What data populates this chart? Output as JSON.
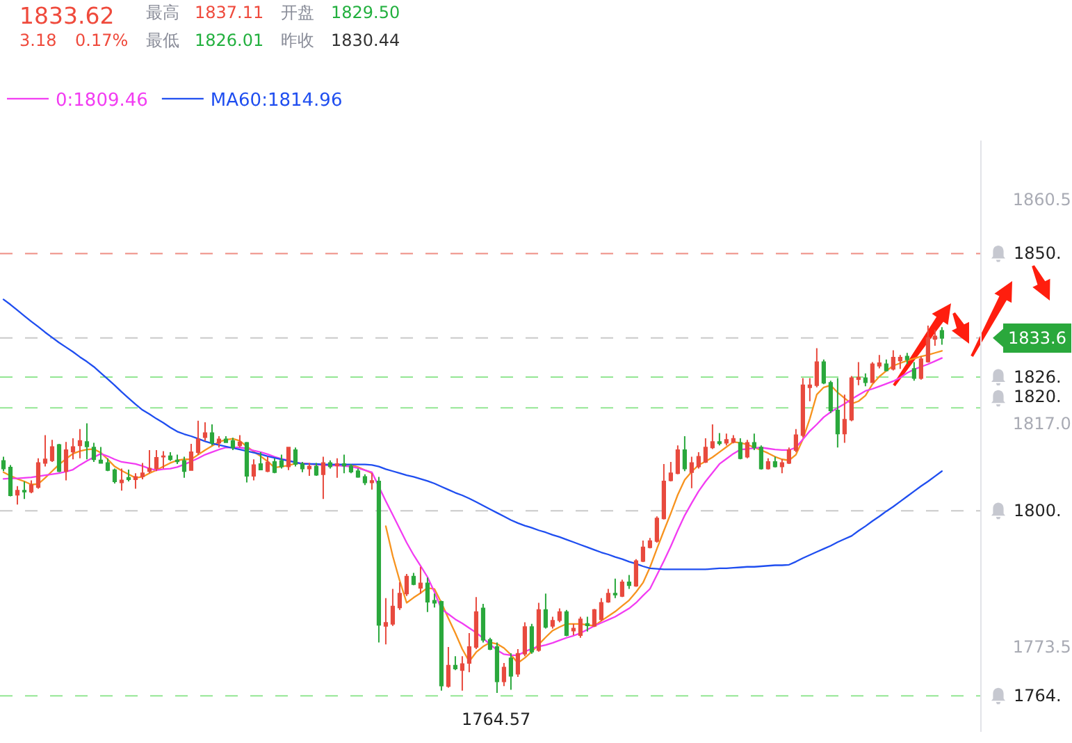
{
  "chart_data": {
    "type": "candlestick",
    "categories": [
      null,
      null,
      null,
      null,
      null,
      null,
      null,
      null,
      null,
      null,
      null,
      null,
      null,
      null,
      null,
      null,
      null,
      null,
      null,
      null,
      null,
      null,
      null,
      null,
      null,
      null,
      null,
      null,
      null,
      null,
      null,
      null,
      null,
      null,
      null,
      null,
      null,
      null,
      null,
      null,
      null,
      null,
      null,
      null,
      null,
      null,
      null,
      null,
      null,
      null,
      null,
      null,
      null,
      null,
      null,
      null,
      null,
      null,
      null,
      null,
      null,
      null,
      null,
      null,
      null,
      null,
      null,
      null,
      null,
      null,
      null,
      null,
      null,
      null,
      null,
      null,
      null,
      null,
      null,
      null,
      null,
      null,
      null,
      null,
      null,
      null,
      null,
      null,
      null,
      null,
      null,
      null,
      null,
      null,
      null,
      null,
      null,
      null,
      null,
      null,
      null,
      null,
      null,
      null,
      null,
      null,
      null,
      null,
      null,
      null,
      null,
      null,
      null,
      null,
      null,
      null,
      null,
      null,
      null,
      null,
      null,
      null,
      null,
      null,
      null,
      null,
      null,
      null,
      null,
      null,
      null,
      null,
      null,
      null,
      null,
      null
    ],
    "ohlc": [
      [
        1809.7,
        1810.5,
        1807.7,
        1808.2
      ],
      [
        1808.4,
        1808.9,
        1802.8,
        1803.0
      ],
      [
        1803.1,
        1804.8,
        1801.2,
        1803.9
      ],
      [
        1803.9,
        1805.7,
        1802.3,
        1803.7
      ],
      [
        1803.7,
        1805.9,
        1803.4,
        1805.0
      ],
      [
        1804.6,
        1810.2,
        1804.3,
        1809.3
      ],
      [
        1809.3,
        1814.7,
        1808.6,
        1810.0
      ],
      [
        1809.8,
        1813.8,
        1809.5,
        1812.4
      ],
      [
        1812.8,
        1813.0,
        1807.5,
        1807.7
      ],
      [
        1807.7,
        1813.4,
        1805.9,
        1811.8
      ],
      [
        1811.5,
        1814.1,
        1810.0,
        1812.4
      ],
      [
        1812.7,
        1815.9,
        1810.2,
        1813.6
      ],
      [
        1813.4,
        1817.0,
        1810.0,
        1812.5
      ],
      [
        1812.3,
        1813.2,
        1809.5,
        1810.0
      ],
      [
        1809.8,
        1812.4,
        1809.3,
        1809.3
      ],
      [
        1809.3,
        1810.2,
        1807.7,
        1807.9
      ],
      [
        1807.9,
        1808.2,
        1805.3,
        1805.7
      ],
      [
        1805.5,
        1808.2,
        1803.9,
        1805.9
      ],
      [
        1806.4,
        1808.0,
        1805.7,
        1806.1
      ],
      [
        1806.1,
        1807.3,
        1804.3,
        1806.6
      ],
      [
        1806.7,
        1809.3,
        1806.1,
        1807.3
      ],
      [
        1807.7,
        1811.8,
        1807.3,
        1808.2
      ],
      [
        1808.2,
        1811.8,
        1807.7,
        1810.3
      ],
      [
        1810.5,
        1811.6,
        1808.2,
        1810.6
      ],
      [
        1810.6,
        1811.4,
        1809.7,
        1810.0
      ],
      [
        1809.8,
        1810.9,
        1809.1,
        1809.6
      ],
      [
        1809.7,
        1810.5,
        1806.4,
        1807.7
      ],
      [
        1807.9,
        1813.0,
        1807.9,
        1811.4
      ],
      [
        1811.4,
        1817.5,
        1810.9,
        1813.9
      ],
      [
        1814.3,
        1817.2,
        1813.6,
        1815.1
      ],
      [
        1815.1,
        1816.8,
        1812.7,
        1813.2
      ],
      [
        1813.2,
        1814.5,
        1812.3,
        1813.9
      ],
      [
        1813.9,
        1814.5,
        1813.2,
        1813.3
      ],
      [
        1813.6,
        1814.2,
        1811.8,
        1812.3
      ],
      [
        1812.7,
        1814.7,
        1812.3,
        1813.3
      ],
      [
        1813.2,
        1813.4,
        1805.5,
        1806.8
      ],
      [
        1806.8,
        1810.0,
        1805.9,
        1808.9
      ],
      [
        1809.1,
        1811.4,
        1807.9,
        1808.0
      ],
      [
        1807.7,
        1810.5,
        1807.5,
        1809.4
      ],
      [
        1809.5,
        1810.2,
        1807.3,
        1807.5
      ],
      [
        1809.7,
        1810.9,
        1808.2,
        1808.6
      ],
      [
        1808.6,
        1812.4,
        1807.9,
        1812.3
      ],
      [
        1811.8,
        1812.3,
        1808.6,
        1809.1
      ],
      [
        1809.1,
        1809.5,
        1807.5,
        1808.2
      ],
      [
        1808.2,
        1809.3,
        1806.8,
        1808.6
      ],
      [
        1808.6,
        1809.3,
        1806.8,
        1807.0
      ],
      [
        1807.1,
        1810.5,
        1802.3,
        1809.3
      ],
      [
        1809.3,
        1809.8,
        1808.2,
        1808.6
      ],
      [
        1808.8,
        1810.2,
        1806.4,
        1809.1
      ],
      [
        1809.1,
        1810.9,
        1807.3,
        1808.8
      ],
      [
        1808.6,
        1809.1,
        1807.3,
        1807.6
      ],
      [
        1807.7,
        1808.2,
        1806.4,
        1806.6
      ],
      [
        1806.6,
        1807.1,
        1805.0,
        1805.5
      ],
      [
        1805.5,
        1807.3,
        1804.1,
        1805.8
      ],
      [
        1805.7,
        1806.6,
        1774.4,
        1777.8
      ],
      [
        1777.6,
        1783.0,
        1774.0,
        1778.2
      ],
      [
        1778.0,
        1784.8,
        1777.6,
        1781.4
      ],
      [
        1781.2,
        1786.1,
        1780.7,
        1783.9
      ],
      [
        1783.9,
        1787.7,
        1783.4,
        1787.2
      ],
      [
        1787.2,
        1787.9,
        1785.5,
        1785.7
      ],
      [
        1785.0,
        1789.1,
        1783.9,
        1785.9
      ],
      [
        1785.9,
        1787.0,
        1780.3,
        1782.3
      ],
      [
        1782.5,
        1783.9,
        1781.2,
        1782.1
      ],
      [
        1782.3,
        1782.5,
        1765.0,
        1766.0
      ],
      [
        1765.9,
        1773.5,
        1765.6,
        1769.9
      ],
      [
        1769.9,
        1771.7,
        1769.0,
        1769.3
      ],
      [
        1769.0,
        1771.7,
        1765.0,
        1770.2
      ],
      [
        1770.4,
        1776.2,
        1768.6,
        1773.5
      ],
      [
        1773.5,
        1783.2,
        1773.1,
        1780.3
      ],
      [
        1781.0,
        1781.9,
        1774.4,
        1774.9
      ],
      [
        1774.9,
        1775.3,
        1772.9,
        1773.1
      ],
      [
        1773.5,
        1774.4,
        1764.57,
        1766.8
      ],
      [
        1766.8,
        1770.4,
        1765.9,
        1769.5
      ],
      [
        1771.3,
        1772.3,
        1765.2,
        1767.9
      ],
      [
        1768.3,
        1773.1,
        1767.7,
        1772.2
      ],
      [
        1772.2,
        1778.3,
        1771.7,
        1777.4
      ],
      [
        1777.4,
        1778.0,
        1772.2,
        1772.6
      ],
      [
        1772.9,
        1782.1,
        1772.6,
        1780.7
      ],
      [
        1780.7,
        1783.9,
        1777.1,
        1777.4
      ],
      [
        1777.6,
        1779.4,
        1777.1,
        1778.6
      ],
      [
        1778.7,
        1781.0,
        1778.3,
        1780.3
      ],
      [
        1780.3,
        1780.7,
        1775.6,
        1775.8
      ],
      [
        1776.7,
        1778.0,
        1775.8,
        1777.1
      ],
      [
        1775.8,
        1779.4,
        1775.3,
        1778.9
      ],
      [
        1778.0,
        1779.4,
        1776.5,
        1777.7
      ],
      [
        1777.6,
        1780.9,
        1777.4,
        1780.7
      ],
      [
        1778.9,
        1783.0,
        1778.5,
        1782.1
      ],
      [
        1782.3,
        1784.8,
        1782.1,
        1783.9
      ],
      [
        1783.9,
        1786.8,
        1783.0,
        1783.7
      ],
      [
        1783.4,
        1786.6,
        1783.2,
        1786.1
      ],
      [
        1786.1,
        1787.5,
        1784.8,
        1785.5
      ],
      [
        1785.4,
        1790.6,
        1785.2,
        1790.2
      ],
      [
        1790.2,
        1794.2,
        1790.0,
        1792.9
      ],
      [
        1792.9,
        1794.7,
        1792.7,
        1794.1
      ],
      [
        1794.1,
        1798.9,
        1793.8,
        1798.5
      ],
      [
        1798.5,
        1809.1,
        1798.3,
        1805.7
      ],
      [
        1805.9,
        1809.5,
        1805.7,
        1807.3
      ],
      [
        1807.3,
        1812.7,
        1807.1,
        1811.8
      ],
      [
        1811.8,
        1814.5,
        1807.7,
        1808.2
      ],
      [
        1807.5,
        1810.5,
        1804.4,
        1809.3
      ],
      [
        1808.6,
        1811.4,
        1808.2,
        1810.5
      ],
      [
        1809.5,
        1814.1,
        1809.3,
        1812.3
      ],
      [
        1812.3,
        1816.8,
        1812.0,
        1813.4
      ],
      [
        1813.4,
        1815.1,
        1812.7,
        1813.1
      ],
      [
        1813.2,
        1815.0,
        1812.7,
        1813.8
      ],
      [
        1813.4,
        1814.7,
        1813.1,
        1814.0
      ],
      [
        1813.2,
        1814.1,
        1810.0,
        1810.2
      ],
      [
        1810.5,
        1813.8,
        1810.2,
        1813.2
      ],
      [
        1813.2,
        1815.0,
        1811.8,
        1812.3
      ],
      [
        1812.3,
        1812.7,
        1808.0,
        1808.2
      ],
      [
        1808.2,
        1810.2,
        1808.0,
        1809.5
      ],
      [
        1809.5,
        1810.5,
        1808.4,
        1808.6
      ],
      [
        1808.6,
        1810.0,
        1807.3,
        1809.3
      ],
      [
        1809.3,
        1812.3,
        1809.1,
        1811.8
      ],
      [
        1811.8,
        1815.9,
        1811.4,
        1814.7
      ],
      [
        1814.7,
        1825.8,
        1814.3,
        1824.4
      ],
      [
        1824.0,
        1825.8,
        1821.3,
        1824.4
      ],
      [
        1824.4,
        1831.6,
        1824.0,
        1828.9
      ],
      [
        1828.9,
        1829.4,
        1824.6,
        1824.9
      ],
      [
        1824.9,
        1825.3,
        1819.0,
        1819.5
      ],
      [
        1819.5,
        1825.8,
        1812.3,
        1815.0
      ],
      [
        1815.0,
        1822.6,
        1813.2,
        1817.7
      ],
      [
        1817.7,
        1826.2,
        1817.4,
        1825.8
      ],
      [
        1825.6,
        1828.9,
        1824.4,
        1825.9
      ],
      [
        1825.8,
        1826.7,
        1824.2,
        1825.0
      ],
      [
        1825.0,
        1828.9,
        1824.9,
        1828.5
      ],
      [
        1828.2,
        1830.3,
        1827.7,
        1828.7
      ],
      [
        1828.5,
        1829.4,
        1827.1,
        1827.3
      ],
      [
        1827.6,
        1831.2,
        1827.3,
        1829.8
      ],
      [
        1829.2,
        1830.3,
        1827.6,
        1829.8
      ],
      [
        1830.0,
        1830.7,
        1828.5,
        1829.4
      ],
      [
        1827.6,
        1828.9,
        1825.3,
        1825.8
      ],
      [
        1825.8,
        1830.0,
        1825.5,
        1829.5
      ],
      [
        1829.0,
        1836.0,
        1828.8,
        1833.6
      ],
      [
        1833.4,
        1835.2,
        1832.1,
        1833.9
      ],
      [
        1835.0,
        1835.7,
        1832.3,
        1833.6
      ]
    ],
    "colors": [
      "#2aa83c",
      "#2aa83c",
      "#e84a3e",
      "#2aa83c",
      "#e84a3e",
      "#e84a3e",
      "#e84a3e",
      "#e84a3e",
      "#2aa83c",
      "#e84a3e",
      "#e84a3e",
      "#e84a3e",
      "#2aa83c",
      "#2aa83c",
      "#2aa83c",
      "#2aa83c",
      "#2aa83c",
      "#e84a3e",
      "#2aa83c",
      "#e84a3e",
      "#e84a3e",
      "#e84a3e",
      "#e84a3e",
      "#e84a3e",
      "#2aa83c",
      "#2aa83c",
      "#2aa83c",
      "#e84a3e",
      "#e84a3e",
      "#e84a3e",
      "#2aa83c",
      "#e84a3e",
      "#2aa83c",
      "#2aa83c",
      "#e84a3e",
      "#2aa83c",
      "#e84a3e",
      "#2aa83c",
      "#e84a3e",
      "#2aa83c",
      "#2aa83c",
      "#e84a3e",
      "#2aa83c",
      "#2aa83c",
      "#e84a3e",
      "#2aa83c",
      "#e84a3e",
      "#2aa83c",
      "#e84a3e",
      "#2aa83c",
      "#2aa83c",
      "#2aa83c",
      "#2aa83c",
      "#e84a3e",
      "#2aa83c",
      "#e84a3e",
      "#e84a3e",
      "#e84a3e",
      "#e84a3e",
      "#2aa83c",
      "#e84a3e",
      "#2aa83c",
      "#2aa83c",
      "#2aa83c",
      "#e84a3e",
      "#2aa83c",
      "#e84a3e",
      "#e84a3e",
      "#e84a3e",
      "#2aa83c",
      "#2aa83c",
      "#2aa83c",
      "#e84a3e",
      "#2aa83c",
      "#e84a3e",
      "#e84a3e",
      "#2aa83c",
      "#e84a3e",
      "#2aa83c",
      "#e84a3e",
      "#e84a3e",
      "#2aa83c",
      "#e84a3e",
      "#e84a3e",
      "#2aa83c",
      "#e84a3e",
      "#e84a3e",
      "#e84a3e",
      "#2aa83c",
      "#e84a3e",
      "#2aa83c",
      "#e84a3e",
      "#e84a3e",
      "#e84a3e",
      "#e84a3e",
      "#e84a3e",
      "#e84a3e",
      "#e84a3e",
      "#2aa83c",
      "#e84a3e",
      "#e84a3e",
      "#e84a3e",
      "#e84a3e",
      "#2aa83c",
      "#e84a3e",
      "#e84a3e",
      "#2aa83c",
      "#e84a3e",
      "#2aa83c",
      "#2aa83c",
      "#e84a3e",
      "#2aa83c",
      "#e84a3e",
      "#e84a3e",
      "#e84a3e",
      "#e84a3e",
      "#e84a3e",
      "#e84a3e",
      "#2aa83c",
      "#2aa83c",
      "#2aa83c",
      "#e84a3e",
      "#e84a3e",
      "#e84a3e",
      "#2aa83c",
      "#e84a3e",
      "#e84a3e",
      "#2aa83c",
      "#e84a3e",
      "#e84a3e",
      "#2aa83c",
      "#2aa83c",
      "#e84a3e",
      "#e84a3e",
      "#e84a3e",
      "#2aa83c"
    ],
    "series": [
      {
        "type": "line",
        "color": "#f7931e",
        "values": [
          1807.5,
          1806.8,
          1806.2,
          1805.7,
          1805.1,
          1805.2,
          1806.4,
          1807.7,
          1809.0,
          1810.1,
          1811.1,
          1811.6,
          1811.9,
          1812.0,
          1811.3,
          1810.0,
          1808.6,
          1807.8,
          1807.1,
          1806.4,
          1806.6,
          1807.3,
          1807.9,
          1808.6,
          1809.3,
          1809.8,
          1810.0,
          1810.0,
          1810.9,
          1811.8,
          1812.6,
          1813.4,
          1813.8,
          1814.0,
          1813.6,
          1812.5,
          1811.5,
          1810.6,
          1809.6,
          1808.4,
          1808.6,
          1808.8,
          1809.2,
          1809.2,
          1809.1,
          1809.0,
          1808.9,
          1808.9,
          1808.9,
          1808.9,
          1808.9,
          1808.5,
          1807.9,
          1807.3,
          null,
          1797.0,
          1791.2,
          1786.4,
          1782.1,
          1783.1,
          1784.0,
          1785.0,
          1784.8,
          1782.1,
          1779.1,
          1776.2,
          1773.1,
          1770.7,
          1772.5,
          1773.6,
          1774.4,
          1774.1,
          1773.3,
          1772.0,
          1770.4,
          1771.4,
          1772.6,
          1774.0,
          1775.4,
          1776.7,
          1777.4,
          1778.0,
          1778.0,
          1778.0,
          1777.8,
          1777.6,
          1778.6,
          1779.5,
          1780.4,
          1781.5,
          1782.6,
          1784.2,
          1786.0,
          1789.0,
          1792.6,
          1796.1,
          1799.5,
          1803.1,
          1806.0,
          1807.6,
          1808.9,
          1809.6,
          1810.4,
          1811.4,
          1812.4,
          1813.4,
          1813.2,
          1812.9,
          1812.3,
          1811.8,
          1811.2,
          1810.5,
          1810.0,
          1809.8,
          1810.9,
          1813.9,
          1817.9,
          1822.6,
          1824.0,
          1824.4,
          1823.0,
          1821.9,
          1820.8,
          1821.3,
          1822.4,
          1824.6,
          1826.1,
          1827.2,
          1828.2,
          1828.7,
          1829.2,
          1829.6,
          1830.0,
          1830.3,
          1830.7,
          1831.1
        ]
      },
      {
        "type": "line",
        "name": "0:1809.46",
        "color": "#f23cf2",
        "values": [
          1806.2,
          1806.3,
          1806.3,
          1806.4,
          1806.5,
          1806.7,
          1806.9,
          1807.1,
          1807.3,
          1807.6,
          1808.0,
          1808.9,
          1809.7,
          1810.4,
          1811.1,
          1810.6,
          1810.0,
          1809.5,
          1809.3,
          1809.1,
          1808.7,
          1808.2,
          1807.9,
          1808.1,
          1808.2,
          1808.5,
          1809.0,
          1809.6,
          1810.2,
          1810.9,
          1811.4,
          1811.9,
          1812.3,
          1812.3,
          1812.3,
          1812.1,
          1811.7,
          1811.4,
          1811.0,
          1810.5,
          1810.1,
          1809.8,
          1809.4,
          1809.2,
          1809.1,
          1809.0,
          1808.9,
          1808.8,
          1808.8,
          1808.7,
          1808.6,
          1808.3,
          1807.9,
          1807.5,
          1804.7,
          1801.9,
          1799.2,
          1796.5,
          1793.8,
          1791.4,
          1789.3,
          1787.1,
          1784.2,
          1780.9,
          1779.9,
          1778.9,
          1778.1,
          1777.2,
          1776.3,
          1775.2,
          1774.0,
          1772.9,
          1772.1,
          1771.9,
          1771.9,
          1772.6,
          1773.2,
          1773.6,
          1773.9,
          1774.3,
          1774.8,
          1775.3,
          1775.7,
          1776.2,
          1776.9,
          1777.6,
          1778.2,
          1778.8,
          1779.4,
          1780.2,
          1781.0,
          1782.1,
          1783.5,
          1784.8,
          1787.5,
          1790.2,
          1793.1,
          1796.2,
          1799.1,
          1801.5,
          1803.8,
          1805.7,
          1807.4,
          1809.1,
          1810.1,
          1811.1,
          1811.9,
          1812.0,
          1812.2,
          1812.3,
          1812.1,
          1811.9,
          1811.8,
          1811.8,
          1812.3,
          1813.9,
          1815.5,
          1816.8,
          1818.2,
          1819.2,
          1820.0,
          1820.8,
          1821.7,
          1822.5,
          1823.3,
          1823.7,
          1824.2,
          1824.7,
          1825.2,
          1825.9,
          1826.8,
          1827.5,
          1828.0,
          1828.5,
          1829.1,
          1829.7
        ]
      },
      {
        "type": "line",
        "name": "MA60:1814.96",
        "color": "#1f4ef0",
        "values": [
          1841.1,
          1840.1,
          1839.0,
          1837.9,
          1836.8,
          1835.8,
          1834.7,
          1833.7,
          1832.7,
          1831.8,
          1830.9,
          1829.9,
          1829.0,
          1828.0,
          1826.8,
          1825.6,
          1824.4,
          1823.1,
          1821.9,
          1820.7,
          1819.6,
          1818.8,
          1817.9,
          1817.1,
          1816.2,
          1815.4,
          1814.9,
          1814.5,
          1814.0,
          1813.5,
          1813.1,
          1812.8,
          1812.5,
          1812.2,
          1811.9,
          1811.6,
          1811.3,
          1811.0,
          1810.6,
          1810.3,
          1810.0,
          1809.7,
          1809.4,
          1809.1,
          1809.1,
          1809.1,
          1809.0,
          1809.0,
          1809.0,
          1809.0,
          1809.0,
          1809.0,
          1809.0,
          1808.9,
          1808.6,
          1808.1,
          1807.7,
          1807.3,
          1806.9,
          1806.6,
          1806.2,
          1805.8,
          1805.3,
          1804.7,
          1804.1,
          1803.5,
          1803.0,
          1802.4,
          1801.7,
          1801.0,
          1800.3,
          1799.6,
          1798.9,
          1798.2,
          1797.6,
          1797.1,
          1796.7,
          1796.2,
          1795.8,
          1795.3,
          1794.9,
          1794.4,
          1793.9,
          1793.4,
          1792.9,
          1792.4,
          1791.9,
          1791.5,
          1791.0,
          1790.6,
          1790.1,
          1789.7,
          1789.2,
          1788.8,
          1788.7,
          1788.6,
          1788.6,
          1788.6,
          1788.6,
          1788.6,
          1788.6,
          1788.6,
          1788.7,
          1788.8,
          1788.8,
          1788.9,
          1789.0,
          1789.1,
          1789.1,
          1789.2,
          1789.3,
          1789.4,
          1789.4,
          1789.5,
          1790.1,
          1790.8,
          1791.4,
          1792.0,
          1792.6,
          1793.2,
          1793.9,
          1794.5,
          1795.1,
          1796.1,
          1797.0,
          1798.0,
          1798.9,
          1799.9,
          1800.8,
          1801.8,
          1802.8,
          1803.8,
          1804.8,
          1805.7,
          1806.7,
          1807.7
        ]
      }
    ],
    "ylim": [
      1757,
      1872
    ],
    "yticks": [
      1860.5,
      {
        "value": 1817,
        "label": "1817.0"
      },
      1773.5
    ],
    "ref_lines": [
      {
        "axis": "y",
        "value": 1850,
        "label": "1850.",
        "color": "#ee8d84",
        "line_style": "dashed"
      },
      {
        "axis": "y",
        "value": 1833.6,
        "label": "1833.6",
        "color": "#c9c9c9",
        "line_style": "dashed"
      },
      {
        "axis": "y",
        "value": 1826,
        "label": "1826.",
        "color": "#93e693",
        "line_style": "dashed"
      },
      {
        "axis": "y",
        "value": 1820,
        "label": "1820.",
        "color": "#93e693",
        "line_style": "dashed"
      },
      {
        "axis": "y",
        "value": 1800,
        "label": "1800.",
        "color": "#c9c9c9",
        "line_style": "dashed"
      },
      {
        "axis": "y",
        "value": 1764,
        "label": "1764.",
        "color": "#93e693",
        "line_style": "dashed"
      }
    ],
    "annotations": [
      "1833.62",
      "最高",
      "1837.11",
      "开盘",
      "1829.50",
      "3.18",
      "0.17%",
      "最低",
      "1826.01",
      "昨收",
      "1830.44",
      {
        "text": "1764.57",
        "y": 1764.57
      }
    ],
    "grid": false,
    "legend": "top left",
    "tick_labels": "y"
  }
}
